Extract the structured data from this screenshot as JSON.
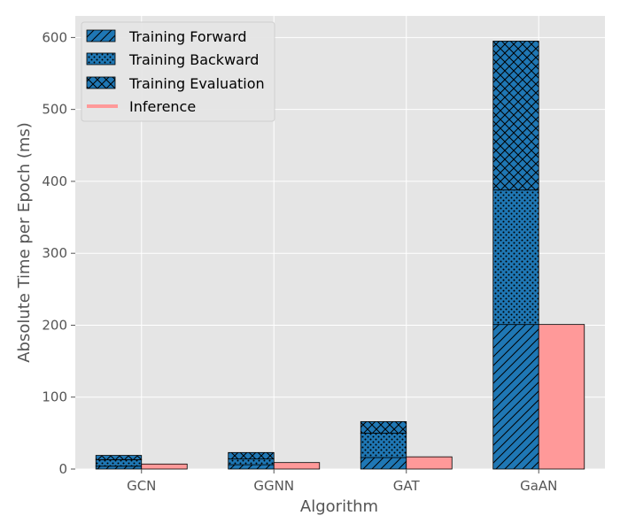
{
  "chart_data": {
    "type": "bar",
    "xlabel": "Algorithm",
    "ylabel": "Absolute Time per Epoch (ms)",
    "categories": [
      "GCN",
      "GGNN",
      "GAT",
      "GaAN"
    ],
    "ylim": [
      0,
      630
    ],
    "yticks": [
      0,
      100,
      200,
      300,
      400,
      500,
      600
    ],
    "grid": true,
    "legend_position": "top-left",
    "stacked_series": [
      {
        "name": "Training Forward",
        "pattern": "diagonal-hatch",
        "values": [
          4,
          6,
          16,
          201
        ]
      },
      {
        "name": "Training Backward",
        "pattern": "dots",
        "values": [
          9,
          8,
          34,
          187
        ]
      },
      {
        "name": "Training Evaluation",
        "pattern": "cross-hatch",
        "values": [
          6,
          9,
          16,
          207
        ]
      }
    ],
    "series": [
      {
        "name": "Inference",
        "values": [
          7,
          9,
          17,
          201
        ]
      }
    ],
    "colors": {
      "training": "#1f77b4",
      "inference": "#ff9999",
      "plot_background": "#e5e5e5",
      "grid": "#ffffff"
    }
  }
}
